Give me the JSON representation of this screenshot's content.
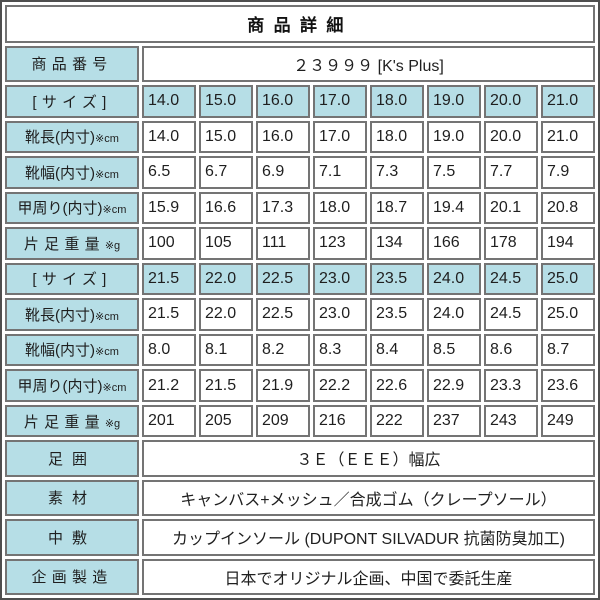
{
  "colors": {
    "header_fill": "#b6dee6",
    "cell_border": "#747474",
    "outer_border": "#4e4e4e",
    "text": "#1f1f1f",
    "background": "#ffffff"
  },
  "rows": [
    {
      "type": "title",
      "name": "product-detail-title",
      "text": "商品詳細"
    },
    {
      "type": "kv",
      "name": "product-number",
      "label": "商品番号",
      "value": "２３９９９ [K's Plus]",
      "spacing": "spaced"
    },
    {
      "type": "grid",
      "name": "size-block1",
      "label": "[サイズ]",
      "suffix": "",
      "shaded": true,
      "spacing": "spaced",
      "values": [
        "14.0",
        "15.0",
        "16.0",
        "17.0",
        "18.0",
        "19.0",
        "20.0",
        "21.0"
      ]
    },
    {
      "type": "grid",
      "name": "shoe-length-block1",
      "label": "靴長(内寸)",
      "suffix": "※cm",
      "shaded": false,
      "spacing": "",
      "values": [
        "14.0",
        "15.0",
        "16.0",
        "17.0",
        "18.0",
        "19.0",
        "20.0",
        "21.0"
      ]
    },
    {
      "type": "grid",
      "name": "shoe-width-block1",
      "label": "靴幅(内寸)",
      "suffix": "※cm",
      "shaded": false,
      "spacing": "",
      "values": [
        "6.5",
        "6.7",
        "6.9",
        "7.1",
        "7.3",
        "7.5",
        "7.7",
        "7.9"
      ]
    },
    {
      "type": "grid",
      "name": "instep-girth-block1",
      "label": "甲周り(内寸)",
      "suffix": "※cm",
      "shaded": false,
      "spacing": "",
      "values": [
        "15.9",
        "16.6",
        "17.3",
        "18.0",
        "18.7",
        "19.4",
        "20.1",
        "20.8"
      ]
    },
    {
      "type": "grid",
      "name": "single-shoe-weight-block1",
      "label": "片足重量",
      "suffix": "※g",
      "shaded": false,
      "spacing": "spaced",
      "values": [
        "100",
        "105",
        "111",
        "123",
        "134",
        "166",
        "178",
        "194"
      ]
    },
    {
      "type": "grid",
      "name": "size-block2",
      "label": "[サイズ]",
      "suffix": "",
      "shaded": true,
      "spacing": "spaced",
      "values": [
        "21.5",
        "22.0",
        "22.5",
        "23.0",
        "23.5",
        "24.0",
        "24.5",
        "25.0"
      ]
    },
    {
      "type": "grid",
      "name": "shoe-length-block2",
      "label": "靴長(内寸)",
      "suffix": "※cm",
      "shaded": false,
      "spacing": "",
      "values": [
        "21.5",
        "22.0",
        "22.5",
        "23.0",
        "23.5",
        "24.0",
        "24.5",
        "25.0"
      ]
    },
    {
      "type": "grid",
      "name": "shoe-width-block2",
      "label": "靴幅(内寸)",
      "suffix": "※cm",
      "shaded": false,
      "spacing": "",
      "values": [
        "8.0",
        "8.1",
        "8.2",
        "8.3",
        "8.4",
        "8.5",
        "8.6",
        "8.7"
      ]
    },
    {
      "type": "grid",
      "name": "instep-girth-block2",
      "label": "甲周り(内寸)",
      "suffix": "※cm",
      "shaded": false,
      "spacing": "",
      "values": [
        "21.2",
        "21.5",
        "21.9",
        "22.2",
        "22.6",
        "22.9",
        "23.3",
        "23.6"
      ]
    },
    {
      "type": "grid",
      "name": "single-shoe-weight-block2",
      "label": "片足重量",
      "suffix": "※g",
      "shaded": false,
      "spacing": "spaced",
      "values": [
        "201",
        "205",
        "209",
        "216",
        "222",
        "237",
        "243",
        "249"
      ]
    },
    {
      "type": "kv",
      "name": "foot-girth",
      "label": "足囲",
      "value": "３Ｅ（ＥＥＥ）幅広",
      "spacing": "spaced-wide"
    },
    {
      "type": "kv",
      "name": "material",
      "label": "素材",
      "value": "キャンバス+メッシュ／合成ゴム（クレープソール）",
      "spacing": "spaced-wide"
    },
    {
      "type": "kv",
      "name": "insole",
      "label": "中敷",
      "value": "カップインソール (DUPONT SILVADUR 抗菌防臭加工)",
      "spacing": "spaced-wide"
    },
    {
      "type": "kv",
      "name": "planning-production",
      "label": "企画製造",
      "value": "日本でオリジナル企画、中国で委託生産",
      "spacing": "spaced"
    }
  ]
}
